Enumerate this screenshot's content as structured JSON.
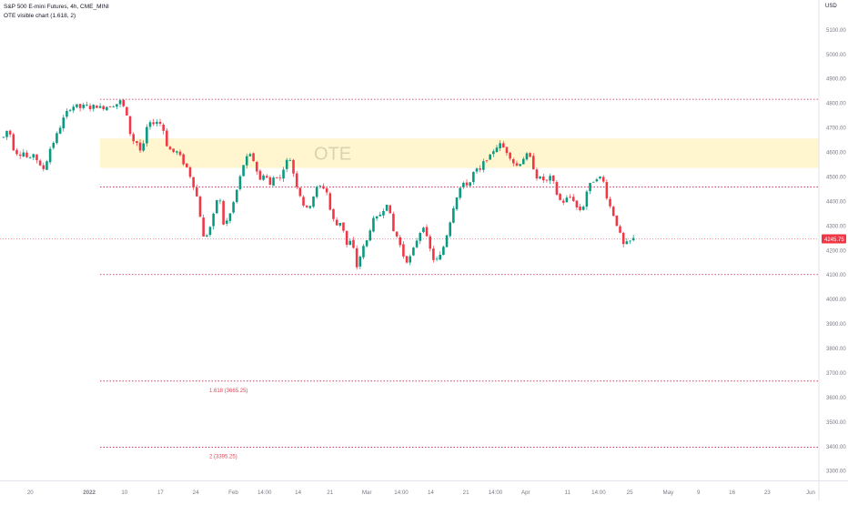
{
  "header": {
    "symbol_line": "S&P 500 E-mini Futures, 4h, CME_MINI",
    "indicator_line": "OTE visible chart (1.618, 2)",
    "currency": "USD"
  },
  "chart_data": {
    "type": "candlestick",
    "x_tick_labels": [
      "20",
      "2022",
      "10",
      "17",
      "24",
      "Feb",
      "14:00",
      "14",
      "21",
      "Mar",
      "14:00",
      "14",
      "21",
      "14:00",
      "Apr",
      "11",
      "14:00",
      "25",
      "May",
      "9",
      "16",
      "23",
      "Jun"
    ],
    "y_tick_labels": [
      5100,
      5000,
      4900,
      4800,
      4700,
      4600,
      4500,
      4400,
      4300,
      4200,
      4100,
      4000,
      3900,
      3800,
      3700,
      3600,
      3500,
      3400,
      3300
    ],
    "ylim": [
      3260,
      5220
    ],
    "last_price": "4245.75",
    "ote_zone": {
      "label": "OTE",
      "top": 4655,
      "bottom": 4535
    },
    "levels": [
      {
        "value": 4815,
        "label": ""
      },
      {
        "value": 4457,
        "label": ""
      },
      {
        "value": 4100,
        "label": ""
      },
      {
        "value": 3665.25,
        "label": "1.618 (3665.25)"
      },
      {
        "value": 3395.25,
        "label": "2 (3395.25)"
      }
    ],
    "path_anchors": [
      [
        4660,
        4700
      ],
      [
        4610,
        4590
      ],
      [
        4600,
        4560
      ],
      [
        4600,
        4540
      ],
      [
        4530,
        4610
      ],
      [
        4650,
        4700
      ],
      [
        4750,
        4780
      ],
      [
        4790,
        4780
      ],
      [
        4790,
        4780
      ],
      [
        4790,
        4780
      ],
      [
        4785,
        4790
      ],
      [
        4795,
        4810
      ],
      [
        4750,
        4650
      ],
      [
        4640,
        4590
      ],
      [
        4700,
        4720
      ],
      [
        4725,
        4710
      ],
      [
        4620,
        4600
      ],
      [
        4600,
        4560
      ],
      [
        4530,
        4470
      ],
      [
        4400,
        4250
      ],
      [
        4270,
        4340
      ],
      [
        4440,
        4300
      ],
      [
        4330,
        4400
      ],
      [
        4480,
        4560
      ],
      [
        4590,
        4560
      ],
      [
        4480,
        4520
      ],
      [
        4460,
        4510
      ],
      [
        4490,
        4560
      ],
      [
        4570,
        4480
      ],
      [
        4420,
        4360
      ],
      [
        4390,
        4450
      ],
      [
        4460,
        4450
      ],
      [
        4340,
        4300
      ],
      [
        4320,
        4220
      ],
      [
        4240,
        4130
      ],
      [
        4200,
        4240
      ],
      [
        4320,
        4330
      ],
      [
        4360,
        4400
      ],
      [
        4280,
        4250
      ],
      [
        4180,
        4150
      ],
      [
        4200,
        4260
      ],
      [
        4300,
        4220
      ],
      [
        4160,
        4160
      ],
      [
        4220,
        4300
      ],
      [
        4390,
        4450
      ],
      [
        4470,
        4470
      ],
      [
        4530,
        4520
      ],
      [
        4570,
        4580
      ],
      [
        4620,
        4630
      ],
      [
        4610,
        4580
      ],
      [
        4540,
        4560
      ],
      [
        4590,
        4570
      ],
      [
        4500,
        4490
      ],
      [
        4480,
        4500
      ],
      [
        4430,
        4390
      ],
      [
        4410,
        4420
      ],
      [
        4370,
        4360
      ],
      [
        4450,
        4480
      ],
      [
        4500,
        4490
      ],
      [
        4400,
        4350
      ],
      [
        4290,
        4220
      ],
      [
        4230,
        4245
      ]
    ]
  }
}
